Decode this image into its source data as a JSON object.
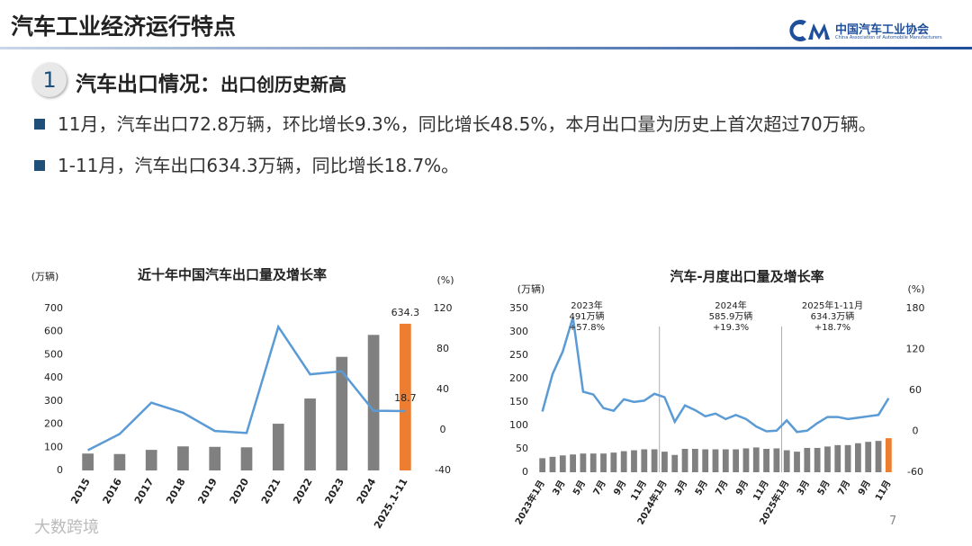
{
  "header": {
    "title": "汽车工业经济运行特点",
    "logo_cn": "中国汽车工业协会",
    "logo_en": "China Association of Automobile Manufacturers"
  },
  "section": {
    "number": "1",
    "title": "汽车出口情况：",
    "subtitle": "出口创历史新高"
  },
  "bullets": [
    "11月，汽车出口72.8万辆，环比增长9.3%，同比增长48.5%，本月出口量为历史上首次超过70万辆。",
    "1-11月，汽车出口634.3万辆，同比增长18.7%。"
  ],
  "page_number": "7",
  "watermark": "大数跨境",
  "chart_data": [
    {
      "type": "bar",
      "title": "近十年中国汽车出口量及增长率",
      "y_label": "(万辆)",
      "y2_label": "(%)",
      "categories": [
        "2015",
        "2016",
        "2017",
        "2018",
        "2019",
        "2020",
        "2021",
        "2022",
        "2023",
        "2024",
        "2025.1-11"
      ],
      "series": [
        {
          "type": "bar",
          "colors": [
            "#808080",
            "#808080",
            "#808080",
            "#808080",
            "#808080",
            "#808080",
            "#808080",
            "#808080",
            "#808080",
            "#808080",
            "#ed7d31"
          ],
          "values": [
            73,
            71,
            89,
            104,
            102,
            100,
            202,
            311,
            491,
            586,
            634.3
          ],
          "data_labels": "last"
        },
        {
          "type": "line",
          "axis": "y2",
          "color": "#5b9bd5",
          "values": [
            -20,
            -4,
            27,
            17,
            -1,
            -3,
            102,
            55,
            58,
            19,
            18.7
          ],
          "data_labels": "last"
        }
      ],
      "ylim": [
        0,
        700
      ],
      "yticks": [
        0,
        100,
        200,
        300,
        400,
        500,
        600,
        700
      ],
      "y2lim": [
        -40,
        120
      ],
      "y2ticks": [
        -40,
        0,
        40,
        80,
        120
      ]
    },
    {
      "type": "bar",
      "title": "汽车-月度出口量及增长率",
      "y_label": "(万辆)",
      "y2_label": "(%)",
      "categories": [
        "2023年1月",
        null,
        "3月",
        null,
        "5月",
        null,
        "7月",
        null,
        "9月",
        null,
        "11月",
        null,
        "2024年1月",
        null,
        "3月",
        null,
        "5月",
        null,
        "7月",
        null,
        "9月",
        null,
        "11月",
        null,
        "2025年1月",
        null,
        "3月",
        null,
        "5月",
        null,
        "7月",
        null,
        "9月",
        null,
        "11月"
      ],
      "series": [
        {
          "type": "bar",
          "colors": [
            "#808080",
            "#808080",
            "#808080",
            "#808080",
            "#808080",
            "#808080",
            "#808080",
            "#808080",
            "#808080",
            "#808080",
            "#808080",
            "#808080",
            "#808080",
            "#808080",
            "#808080",
            "#808080",
            "#808080",
            "#808080",
            "#808080",
            "#808080",
            "#808080",
            "#808080",
            "#808080",
            "#808080",
            "#808080",
            "#808080",
            "#808080",
            "#808080",
            "#808080",
            "#808080",
            "#808080",
            "#808080",
            "#808080",
            "#808080",
            "#ed7d31"
          ],
          "values": [
            30,
            33,
            36,
            38,
            40,
            40,
            40,
            42,
            45,
            47,
            49,
            49,
            44,
            37,
            50,
            50,
            49,
            49,
            49,
            49,
            51,
            53,
            50,
            51,
            47,
            44,
            52,
            52,
            55,
            58,
            58,
            62,
            65,
            67,
            72.8
          ]
        },
        {
          "type": "line",
          "axis": "y2",
          "color": "#5b9bd5",
          "values": [
            29,
            84,
            117,
            167,
            58,
            54,
            34,
            30,
            47,
            43,
            45,
            55,
            50,
            14,
            38,
            31,
            22,
            26,
            18,
            24,
            18,
            7,
            0,
            1,
            16,
            -1,
            1,
            12,
            21,
            21,
            18,
            20,
            22,
            24,
            48.5
          ]
        }
      ],
      "annotations": [
        [
          "2023年",
          "491万辆",
          "+57.8%"
        ],
        [
          "2024年",
          "585.9万辆",
          "+19.3%"
        ],
        [
          "2025年1-11月",
          "634.3万辆",
          "+18.7%"
        ]
      ],
      "ylim": [
        0,
        350
      ],
      "yticks": [
        0,
        50,
        100,
        150,
        200,
        250,
        300,
        350
      ],
      "y2lim": [
        -60,
        180
      ],
      "y2ticks": [
        -60,
        0,
        60,
        120,
        180
      ]
    }
  ]
}
